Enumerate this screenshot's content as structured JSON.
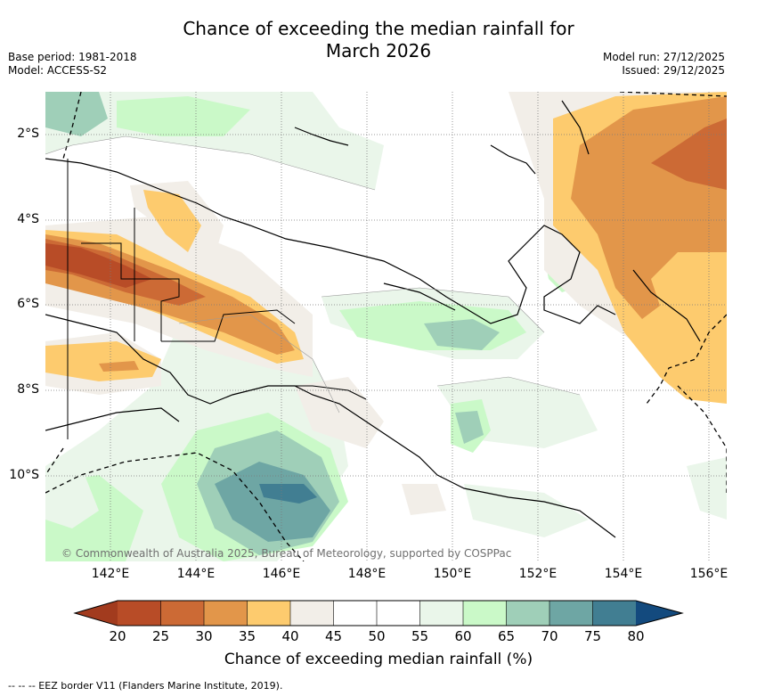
{
  "title_line1": "Chance of exceeding the median rainfall for",
  "title_line2": "March 2026",
  "meta_left": {
    "base_period": "Base period: 1981-2018",
    "model": "Model: ACCESS-S2"
  },
  "meta_right": {
    "model_run": "Model run: 27/12/2025",
    "issued": "Issued: 29/12/2025"
  },
  "map": {
    "x_ticks": [
      "142°E",
      "144°E",
      "146°E",
      "148°E",
      "150°E",
      "152°E",
      "154°E",
      "156°E"
    ],
    "y_ticks": [
      "2°S",
      "4°S",
      "6°S",
      "8°S",
      "10°S"
    ],
    "lon_range": [
      140.6,
      156.5
    ],
    "lat_range": [
      -12,
      -1
    ],
    "copyright": "© Commonwealth of Australia 2025, Bureau of Meteorology, supported by COSPPac"
  },
  "colorbar": {
    "labels": [
      "20",
      "25",
      "30",
      "35",
      "40",
      "45",
      "50",
      "55",
      "60",
      "65",
      "70",
      "75",
      "80"
    ],
    "colors": [
      "#a23b1e",
      "#b84c27",
      "#cc6a35",
      "#e2964a",
      "#fdcb6e",
      "#f2eee8",
      "#ffffff",
      "#ffffff",
      "#eaf6ea",
      "#caf9c8",
      "#9fcfb8",
      "#6ea6a4",
      "#417e92",
      "#134a7e"
    ],
    "title": "Chance of exceeding median rainfall (%)"
  },
  "legend": {
    "eez": "-- -- -- EEZ border V11 (Flanders Marine Institute, 2019)."
  }
}
